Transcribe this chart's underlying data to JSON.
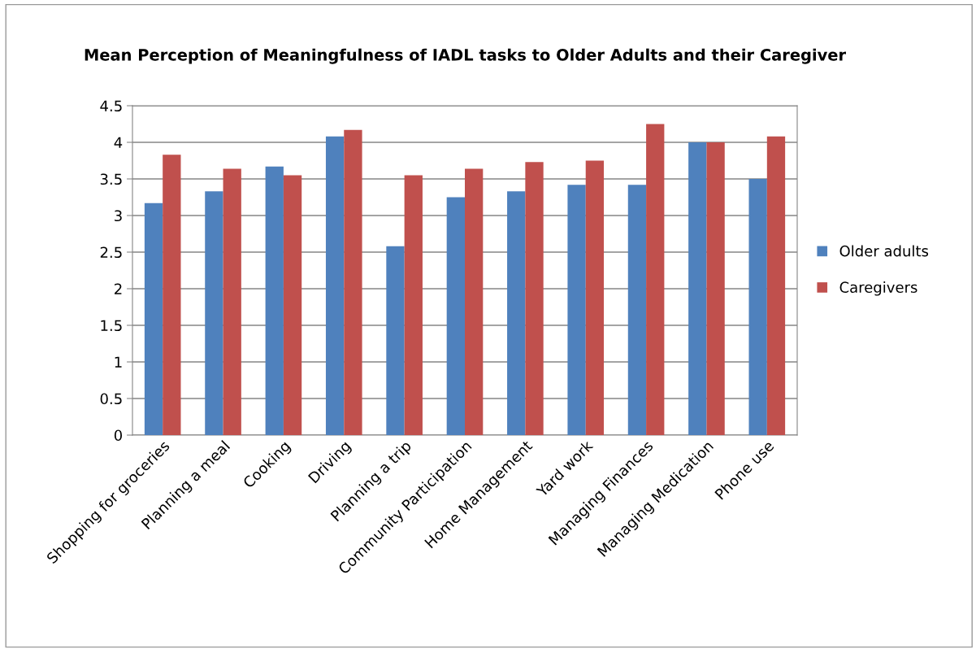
{
  "chart_data": {
    "type": "bar",
    "title": "Mean Perception of Meaningfulness of IADL tasks to Older Adults and their Caregiver",
    "categories": [
      "Shopping for groceries",
      "Planning a meal",
      "Cooking",
      "Driving",
      "Planning a trip",
      "Community Participation",
      "Home Management",
      "Yard work",
      "Managing Finances",
      "Managing Medication",
      "Phone use"
    ],
    "series": [
      {
        "name": "Older adults",
        "color": "#4f81bd",
        "values": [
          3.17,
          3.33,
          3.67,
          4.08,
          2.58,
          3.25,
          3.33,
          3.42,
          3.42,
          4.0,
          3.5
        ]
      },
      {
        "name": "Caregivers",
        "color": "#c0504d",
        "values": [
          3.83,
          3.64,
          3.55,
          4.17,
          3.55,
          3.64,
          3.73,
          3.75,
          4.25,
          4.0,
          4.08
        ]
      }
    ],
    "ylim": [
      0,
      4.5
    ],
    "yticks": [
      0,
      0.5,
      1,
      1.5,
      2,
      2.5,
      3,
      3.5,
      4,
      4.5
    ],
    "grid": "y",
    "legend": "right"
  }
}
